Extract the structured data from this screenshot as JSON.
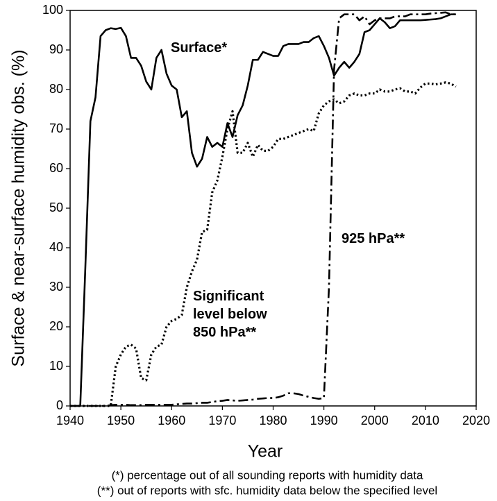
{
  "chart_data": {
    "type": "line",
    "y_label": "Surface & near-surface humidity obs. (%)",
    "x_label": "Year",
    "footnotes": [
      "(*) percentage out of all sounding reports with humidity data",
      "(**) out of reports with sfc. humidity data below the specified level"
    ],
    "xlim": [
      1940,
      2020
    ],
    "xticks": [
      1940,
      1950,
      1960,
      1970,
      1980,
      1990,
      2000,
      2010,
      2020
    ],
    "ylim": [
      0,
      100
    ],
    "yticks": [
      0,
      10,
      20,
      30,
      40,
      50,
      60,
      70,
      80,
      90,
      100
    ],
    "grid": false,
    "x": [
      1940,
      1941,
      1942,
      1943,
      1944,
      1945,
      1946,
      1947,
      1948,
      1949,
      1950,
      1951,
      1952,
      1953,
      1954,
      1955,
      1956,
      1957,
      1958,
      1959,
      1960,
      1961,
      1962,
      1963,
      1964,
      1965,
      1966,
      1967,
      1968,
      1969,
      1970,
      1971,
      1972,
      1973,
      1974,
      1975,
      1976,
      1977,
      1978,
      1979,
      1980,
      1981,
      1982,
      1983,
      1984,
      1985,
      1986,
      1987,
      1988,
      1989,
      1990,
      1991,
      1992,
      1993,
      1994,
      1995,
      1996,
      1997,
      1998,
      1999,
      2000,
      2001,
      2002,
      2003,
      2004,
      2005,
      2006,
      2007,
      2008,
      2009,
      2010,
      2011,
      2012,
      2013,
      2014,
      2015,
      2016
    ],
    "series": [
      {
        "name": "Surface*",
        "color": "#000000",
        "style": "solid",
        "values": [
          0,
          0,
          0,
          35,
          72,
          78,
          93.5,
          95,
          95.5,
          95.3,
          95.6,
          93.5,
          88,
          88,
          86,
          82,
          80,
          88,
          90,
          84,
          81,
          80,
          73,
          74.5,
          64,
          60.5,
          62.5,
          68,
          65.5,
          66.5,
          65.5,
          71.5,
          68,
          73.5,
          76,
          81,
          87.5,
          87.5,
          89.5,
          89,
          88.5,
          88.5,
          91,
          91.5,
          91.5,
          91.5,
          92,
          92,
          93,
          93.5,
          91,
          88,
          83.5,
          85.5,
          87,
          85.5,
          87,
          89,
          94.5,
          95,
          96.5,
          98,
          97,
          95.5,
          96,
          97.5,
          97.5,
          97.5,
          97.5,
          97.5,
          97.6,
          97.7,
          97.8,
          98,
          98.5,
          99,
          99
        ]
      },
      {
        "name": "Significant level below 850 hPa**",
        "color": "#000000",
        "style": "dotted",
        "values": [
          0,
          0,
          0,
          0,
          0,
          0,
          0,
          0,
          0,
          10,
          13,
          15,
          15.5,
          14.5,
          7,
          6.5,
          13,
          15,
          15.5,
          20,
          21.5,
          22,
          23,
          30,
          34,
          37,
          44,
          44.5,
          54,
          57,
          63,
          70,
          74.5,
          64,
          64,
          66.5,
          63,
          66,
          64.5,
          64.5,
          65.5,
          67.5,
          67.5,
          68,
          68.5,
          69,
          69.5,
          70,
          69.5,
          74,
          76,
          77,
          77.5,
          76.5,
          77,
          78.5,
          79,
          78.5,
          78.5,
          79,
          79,
          80,
          79.5,
          79.5,
          80,
          80.3,
          79.5,
          79.5,
          79,
          80.5,
          81.5,
          81.5,
          81.3,
          81.5,
          81.8,
          81.5,
          80.7
        ]
      },
      {
        "name": "925 hPa**",
        "color": "#000000",
        "style": "dashdot",
        "values": [
          0,
          0,
          0,
          0,
          0,
          0,
          0,
          0,
          0.2,
          0.3,
          0.3,
          0.3,
          0.2,
          0.2,
          0.2,
          0.3,
          0.3,
          0.3,
          0.3,
          0.3,
          0.3,
          0.4,
          0.5,
          0.6,
          0.6,
          0.7,
          0.8,
          0.8,
          1,
          1.2,
          1.3,
          1.5,
          1.4,
          1.3,
          1.4,
          1.5,
          1.6,
          1.8,
          1.9,
          2,
          2,
          2.2,
          2.6,
          3.2,
          3.2,
          3,
          2.6,
          2.3,
          2,
          1.8,
          2,
          30,
          85,
          98,
          99,
          99,
          99,
          97.5,
          98.5,
          96.5,
          97.5,
          98,
          98,
          98,
          98.5,
          98.5,
          98.5,
          99,
          99,
          99,
          99,
          99.2,
          99.3,
          99.4,
          99.5,
          99,
          99
        ]
      }
    ]
  }
}
